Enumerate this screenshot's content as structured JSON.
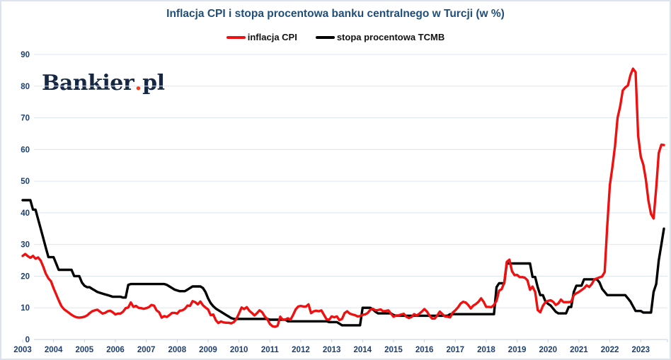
{
  "page": {
    "title": "Inflacja CPI i stopa procentowa banku centralnego w Turcji (w %)"
  },
  "logo": {
    "text_main": "Bankier",
    "dot": ".",
    "text_suffix": "pl",
    "navy_color": "#152743",
    "dot_color": "#e8431c"
  },
  "legend": {
    "items": [
      {
        "label": "inflacja CPI",
        "color": "#ee1111"
      },
      {
        "label": "stopa procentowa TCMB",
        "color": "#000000"
      }
    ]
  },
  "colors": {
    "title": "#1f4e79",
    "axis_labels": "#1f3f6e",
    "gridline": "#dbe5f4",
    "axis_line": "#c3d2e8",
    "frame_border": "#dce3ef",
    "cpi_line": "#ee1111",
    "tcmb_line": "#000000"
  },
  "chart_data": {
    "type": "line",
    "title": "Inflacja CPI i stopa procentowa banku centralnego w Turcji (w %)",
    "xlabel": "",
    "ylabel": "",
    "ylim": [
      0,
      90
    ],
    "y_ticks": [
      0,
      10,
      20,
      30,
      40,
      50,
      60,
      70,
      80,
      90
    ],
    "grid": "horizontal",
    "legend_position": "top-center",
    "x_unit": "monthly",
    "x_range": "2003-01 to 2023-10",
    "x_tick_labels": [
      "2003",
      "2004",
      "2005",
      "2006",
      "2007",
      "2008",
      "2009",
      "2010",
      "2011",
      "2012",
      "2013",
      "2014",
      "2015",
      "2016",
      "2017",
      "2018",
      "2019",
      "2020",
      "2021",
      "2022",
      "2023"
    ],
    "series": [
      {
        "name": "inflacja CPI",
        "color": "#ee1111",
        "values": [
          26.4,
          27.0,
          26.3,
          25.8,
          26.4,
          25.5,
          25.9,
          24.9,
          23.0,
          20.8,
          19.3,
          18.4,
          16.2,
          14.3,
          12.4,
          10.6,
          9.6,
          9.0,
          8.4,
          7.8,
          7.3,
          7.0,
          6.9,
          7.0,
          7.2,
          7.6,
          8.3,
          8.9,
          9.2,
          9.4,
          8.8,
          8.2,
          8.4,
          8.9,
          9.1,
          8.6,
          7.9,
          8.2,
          8.2,
          8.8,
          9.9,
          10.1,
          11.7,
          10.3,
          10.6,
          10.0,
          9.9,
          9.7,
          9.9,
          10.2,
          10.9,
          10.7,
          9.2,
          8.6,
          6.9,
          7.4,
          7.1,
          7.7,
          8.4,
          8.4,
          8.2,
          9.1,
          9.2,
          9.7,
          10.7,
          10.6,
          12.1,
          11.8,
          11.1,
          12.0,
          10.8,
          10.1,
          9.5,
          7.7,
          7.9,
          6.1,
          5.2,
          5.7,
          5.4,
          5.3,
          5.3,
          5.1,
          5.5,
          6.5,
          8.2,
          10.1,
          9.6,
          10.2,
          9.1,
          8.4,
          7.6,
          8.3,
          9.2,
          8.6,
          7.3,
          6.4,
          4.9,
          4.2,
          4.0,
          4.3,
          7.2,
          6.2,
          6.3,
          6.7,
          6.2,
          7.7,
          9.5,
          10.4,
          10.6,
          10.4,
          10.4,
          11.1,
          8.3,
          8.9,
          9.1,
          8.9,
          9.2,
          7.8,
          6.4,
          6.2,
          7.3,
          7.0,
          7.3,
          6.1,
          6.5,
          8.3,
          8.9,
          8.2,
          7.9,
          7.7,
          7.3,
          7.4,
          7.8,
          7.9,
          8.4,
          9.4,
          9.7,
          9.2,
          9.3,
          9.5,
          8.9,
          9.0,
          9.2,
          8.2,
          7.2,
          7.6,
          7.6,
          7.9,
          8.1,
          7.2,
          6.8,
          7.1,
          8.0,
          7.6,
          8.1,
          8.8,
          9.6,
          8.8,
          7.5,
          6.6,
          6.6,
          7.6,
          8.8,
          8.0,
          7.3,
          7.2,
          7.0,
          8.5,
          9.2,
          10.1,
          11.3,
          11.9,
          11.7,
          10.9,
          9.8,
          10.7,
          11.2,
          11.9,
          13.0,
          11.9,
          10.3,
          10.3,
          10.2,
          10.9,
          12.2,
          15.4,
          15.9,
          17.9,
          24.5,
          25.2,
          21.6,
          20.3,
          20.4,
          19.7,
          19.7,
          19.5,
          18.7,
          15.7,
          16.7,
          15.0,
          9.3,
          8.6,
          10.6,
          11.8,
          12.2,
          12.4,
          11.9,
          10.9,
          11.4,
          12.6,
          11.8,
          11.8,
          11.8,
          11.9,
          14.0,
          14.6,
          15.0,
          15.6,
          16.2,
          17.1,
          16.6,
          17.5,
          19.0,
          19.3,
          19.6,
          19.9,
          21.3,
          36.1,
          48.7,
          54.4,
          61.1,
          70.0,
          73.5,
          78.6,
          79.6,
          80.2,
          83.5,
          85.5,
          84.4,
          64.3,
          57.7,
          55.2,
          50.5,
          43.7,
          39.6,
          38.2,
          47.8,
          58.9,
          61.5,
          61.4
        ]
      },
      {
        "name": "stopa procentowa TCMB",
        "color": "#000000",
        "values": [
          44,
          44,
          44,
          44,
          41,
          41,
          38,
          35,
          32,
          29,
          26,
          26,
          26,
          24,
          22,
          22,
          22,
          22,
          22,
          22,
          20,
          20,
          20,
          18,
          17,
          16.5,
          16.5,
          16,
          15.5,
          15,
          14.75,
          14.5,
          14.25,
          14,
          13.75,
          13.5,
          13.5,
          13.5,
          13.5,
          13.25,
          13.25,
          17.25,
          17.5,
          17.5,
          17.5,
          17.5,
          17.5,
          17.5,
          17.5,
          17.5,
          17.5,
          17.5,
          17.5,
          17.5,
          17.5,
          17.5,
          17.25,
          16.75,
          16.25,
          15.75,
          15.5,
          15.25,
          15.25,
          15.25,
          15.75,
          16.25,
          16.75,
          16.75,
          16.75,
          16.75,
          16.25,
          15,
          13,
          11.5,
          10.5,
          9.75,
          9.25,
          8.75,
          8.25,
          7.75,
          7.25,
          6.75,
          6.5,
          6.5,
          6.5,
          6.5,
          6.5,
          6.5,
          6.5,
          6.5,
          6.5,
          6.5,
          6.5,
          6.5,
          6.5,
          6.5,
          6.25,
          6.25,
          6.25,
          6.25,
          6.25,
          6.25,
          6.25,
          5.75,
          5.75,
          5.75,
          5.75,
          5.75,
          5.75,
          5.75,
          5.75,
          5.75,
          5.75,
          5.75,
          5.75,
          5.75,
          5.75,
          5.75,
          5.75,
          5.5,
          5.5,
          5.5,
          5.5,
          5.0,
          4.5,
          4.5,
          4.5,
          4.5,
          4.5,
          4.5,
          4.5,
          4.5,
          10,
          10,
          10,
          10,
          9.5,
          8.75,
          8.25,
          8.25,
          8.25,
          8.25,
          8.25,
          8.25,
          7.75,
          7.5,
          7.5,
          7.5,
          7.5,
          7.5,
          7.5,
          7.5,
          7.5,
          7.5,
          7.5,
          7.5,
          7.5,
          7.5,
          7.5,
          7.5,
          7.5,
          7.5,
          7.5,
          7.5,
          7.5,
          7.5,
          8.0,
          8.0,
          8.0,
          8.0,
          8.0,
          8.0,
          8.0,
          8.0,
          8.0,
          8.0,
          8.0,
          8.0,
          8.0,
          8.0,
          8.0,
          8.0,
          8.0,
          8.0,
          16.5,
          17.75,
          17.75,
          17.75,
          24,
          24,
          24,
          24,
          24,
          24,
          24,
          24,
          24,
          24,
          19.75,
          19.75,
          16.5,
          14,
          14,
          12,
          11.25,
          10.75,
          9.75,
          8.75,
          8.25,
          8.25,
          8.25,
          8.25,
          10.25,
          10.25,
          15,
          17,
          17,
          17,
          19,
          19,
          19,
          19,
          19,
          19,
          18,
          16,
          15,
          14,
          14,
          14,
          14,
          14,
          14,
          14,
          14,
          13,
          12,
          10.5,
          9,
          9,
          9,
          8.5,
          8.5,
          8.5,
          8.5,
          15,
          17.5,
          25,
          30,
          35
        ]
      }
    ]
  }
}
